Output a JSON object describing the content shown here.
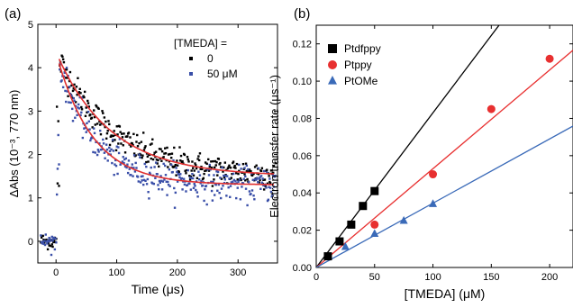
{
  "chart_data": [
    {
      "panel_label": "(a)",
      "type": "scatter",
      "xlabel": "Time (μs)",
      "ylabel": "ΔAbs (10⁻³, 770 nm)",
      "xlim": [
        -30,
        365
      ],
      "ylim": [
        -0.5,
        5
      ],
      "x_ticks": [
        0,
        100,
        200,
        300
      ],
      "y_ticks": [
        0,
        1,
        2,
        3,
        4,
        5
      ],
      "grid": false,
      "legend_title": "[TMEDA] =",
      "legend_position": "top-right",
      "fit_color": "#e03030",
      "series": [
        {
          "name": "0",
          "color": "#000000",
          "marker": "square",
          "decay": {
            "amplitude": 2.7,
            "tau": 90,
            "offset": 1.5,
            "t0": 5
          },
          "noise": 0.17
        },
        {
          "name": "50 μM",
          "color": "#3a4fa8",
          "marker": "square",
          "decay": {
            "amplitude": 2.8,
            "tau": 60,
            "offset": 1.3,
            "t0": 5
          },
          "noise": 0.19
        }
      ]
    },
    {
      "panel_label": "(b)",
      "type": "scatter",
      "xlabel": "[TMEDA] (μM)",
      "ylabel": "Electron transfer rate (μs⁻¹)",
      "xlim": [
        0,
        220
      ],
      "ylim": [
        0,
        0.13
      ],
      "x_ticks": [
        0,
        50,
        100,
        150,
        200
      ],
      "y_ticks": [
        0.0,
        0.02,
        0.04,
        0.06,
        0.08,
        0.1,
        0.12
      ],
      "grid": false,
      "legend_position": "top-left",
      "series": [
        {
          "name": "Ptdfppy",
          "color": "#000000",
          "marker": "square",
          "x": [
            10,
            20,
            30,
            40,
            50
          ],
          "y": [
            0.006,
            0.014,
            0.023,
            0.033,
            0.041
          ],
          "fit_slope": 0.00083
        },
        {
          "name": "Ptppy",
          "color": "#e83030",
          "marker": "circle",
          "x": [
            50,
            100,
            150,
            200
          ],
          "y": [
            0.023,
            0.05,
            0.085,
            0.112
          ],
          "fit_slope": 0.00053
        },
        {
          "name": "PtOMe",
          "color": "#3a6ab8",
          "marker": "triangle",
          "x": [
            25,
            50,
            75,
            100
          ],
          "y": [
            0.011,
            0.018,
            0.025,
            0.034
          ],
          "fit_slope": 0.000345
        }
      ]
    }
  ]
}
